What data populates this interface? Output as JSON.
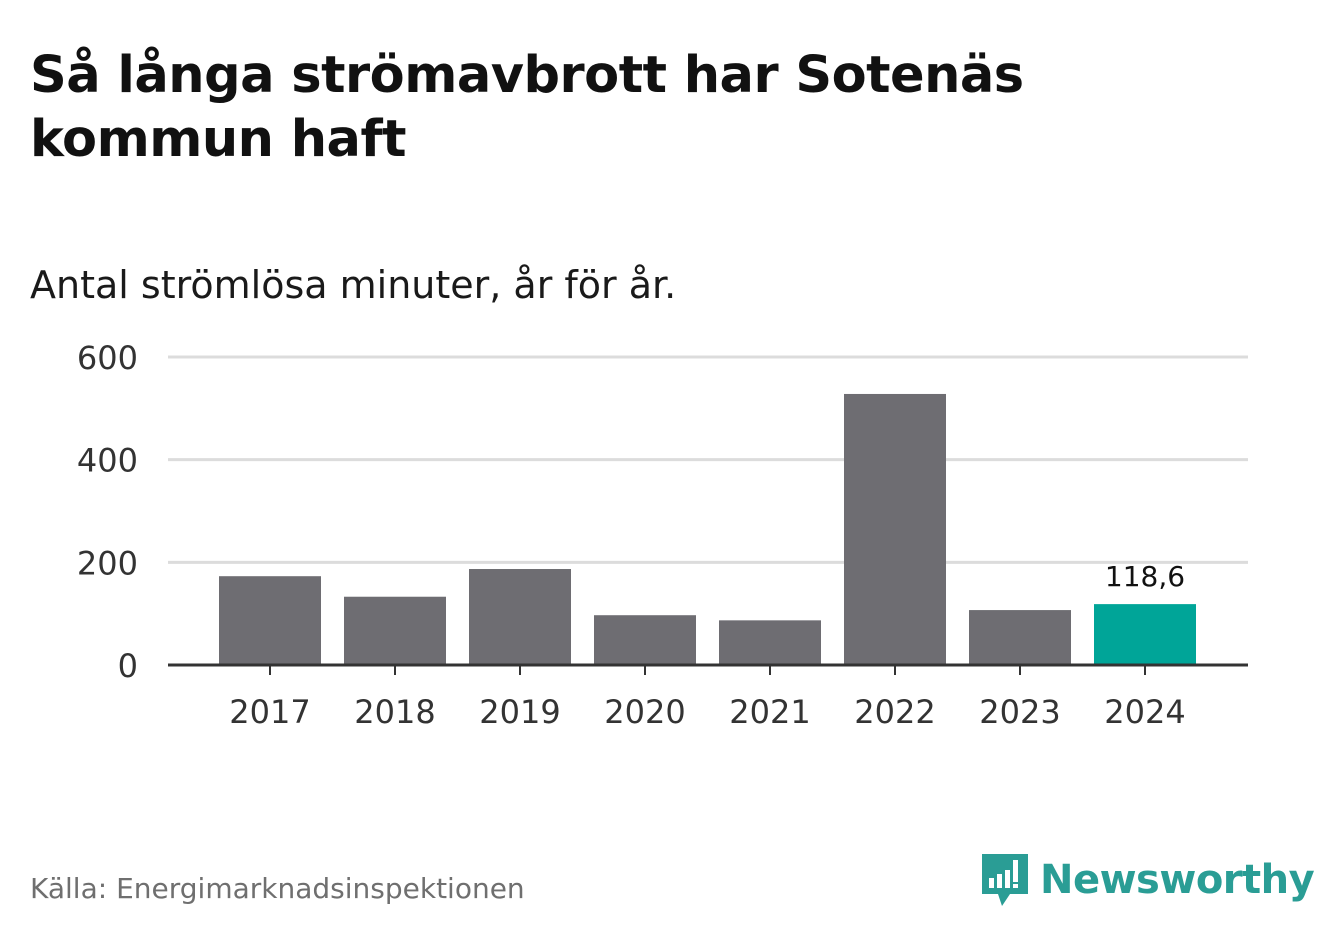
{
  "title": "Så långa strömavbrott har Sotenäs kommun haft",
  "subtitle": "Antal strömlösa minuter, år för år.",
  "source": "Källa: Energimarknadsinspektionen",
  "brand": "Newsworthy",
  "colors": {
    "bar": "#6e6d72",
    "highlight": "#00a598",
    "grid": "#dcdcdc",
    "axis": "#333333",
    "brand": "#2a9d95"
  },
  "chart_data": {
    "type": "bar",
    "categories": [
      "2017",
      "2018",
      "2019",
      "2020",
      "2021",
      "2022",
      "2023",
      "2024"
    ],
    "values": [
      173,
      133,
      187,
      97,
      87,
      528,
      107,
      118.6
    ],
    "highlight_index": 7,
    "data_labels": {
      "7": "118,6"
    },
    "ylim": [
      0,
      600
    ],
    "yticks": [
      0,
      200,
      400,
      600
    ],
    "grid": true
  }
}
